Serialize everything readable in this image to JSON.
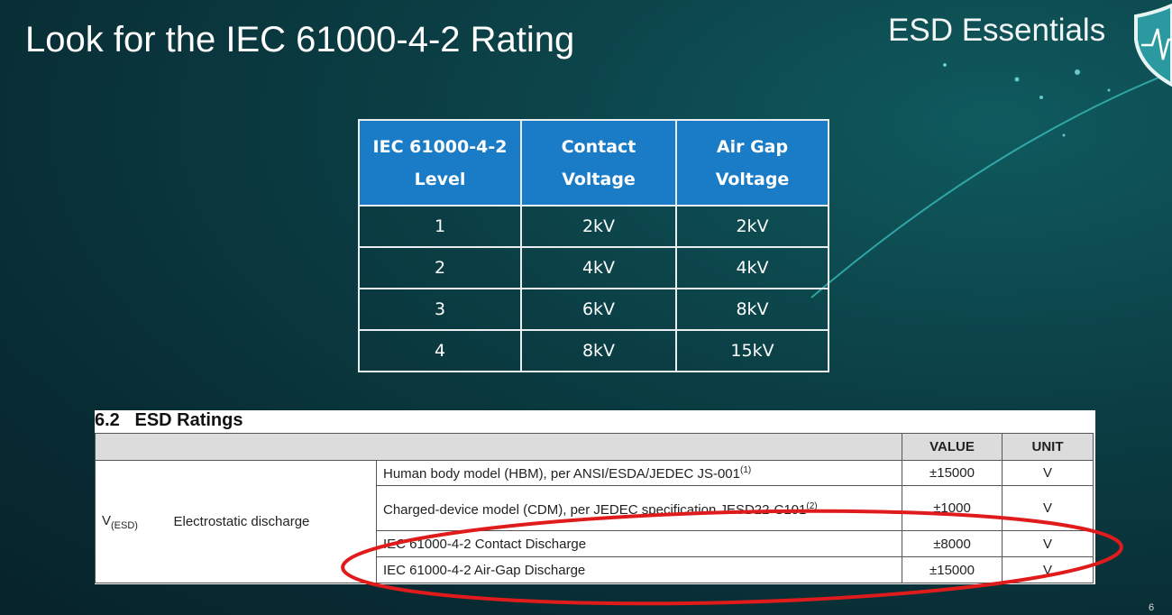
{
  "slide": {
    "title": "Look for the IEC 61000-4-2 Rating",
    "brand": "ESD Essentials",
    "page_number": "6",
    "highlight_color": "#e01b1b",
    "header_color": "#1a7cc6"
  },
  "iec_table": {
    "headers": [
      [
        "IEC 61000-4-2",
        "Level"
      ],
      [
        "Contact",
        "Voltage"
      ],
      [
        "Air Gap",
        "Voltage"
      ]
    ],
    "rows": [
      [
        "1",
        "2kV",
        "2kV"
      ],
      [
        "2",
        "4kV",
        "4kV"
      ],
      [
        "3",
        "6kV",
        "8kV"
      ],
      [
        "4",
        "8kV",
        "15kV"
      ]
    ]
  },
  "esd_ratings": {
    "section": "6.2   ESD Ratings",
    "col_value": "VALUE",
    "col_unit": "UNIT",
    "symbol": "V",
    "symbol_sub": "(ESD)",
    "parameter": "Electrostatic discharge",
    "rows": [
      {
        "condition": "Human body model (HBM), per ANSI/ESDA/JEDEC JS-001",
        "note": "(1)",
        "value": "±15000",
        "unit": "V"
      },
      {
        "condition": "Charged-device model (CDM), per JEDEC specification JESD22-C101",
        "note": "(2)",
        "value": "±1000",
        "unit": "V"
      },
      {
        "condition": "IEC 61000-4-2 Contact Discharge",
        "note": "",
        "value": "±8000",
        "unit": "V"
      },
      {
        "condition": "IEC 61000-4-2 Air-Gap Discharge",
        "note": "",
        "value": "±15000",
        "unit": "V"
      }
    ]
  }
}
